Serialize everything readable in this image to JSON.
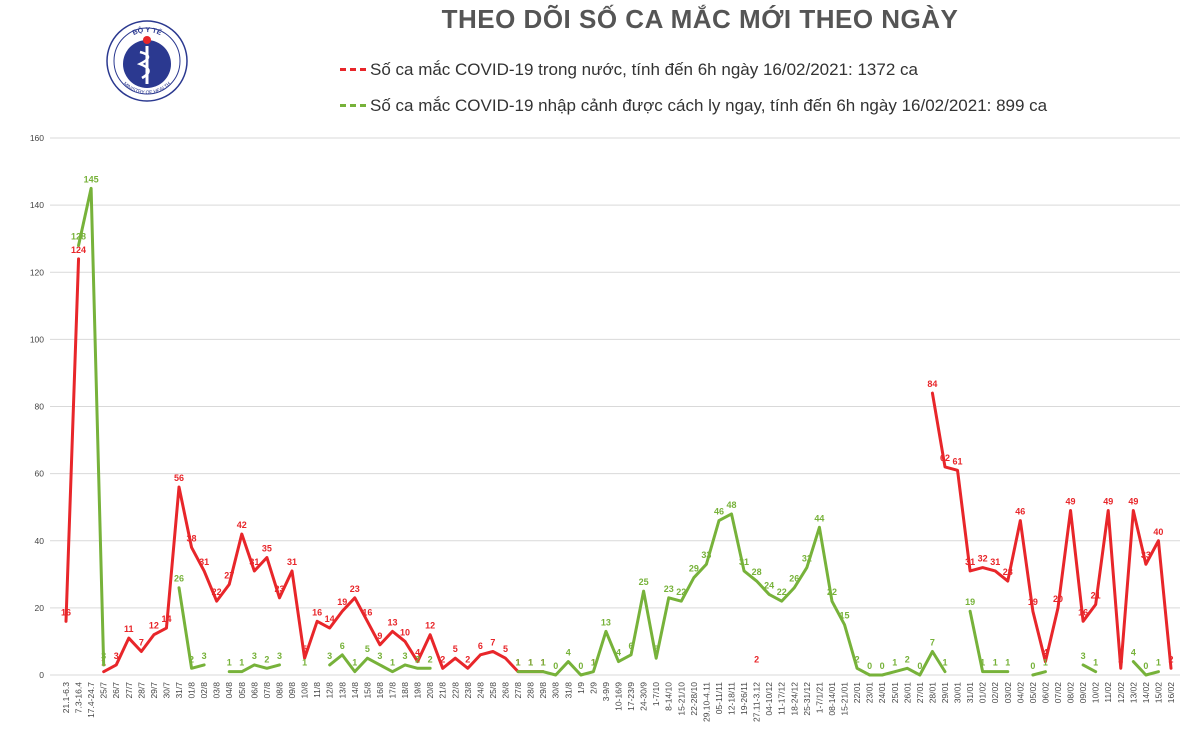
{
  "header": {
    "title": "THEO DÕI SỐ CA MẮC MỚI THEO NGÀY",
    "logo_text_top": "BỘ Y TẾ",
    "logo_text_bottom": "MINISTRY OF HEALTH"
  },
  "legend": {
    "domestic": "Số ca mắc COVID-19 trong nước, tính đến 6h ngày 16/02/2021: 1372 ca",
    "imported": "Số ca mắc COVID-19 nhập cảnh được cách ly ngay, tính đến 6h ngày 16/02/2021: 899 ca"
  },
  "colors": {
    "domestic": "#e8262a",
    "imported": "#77b23a",
    "grid": "#d9d9d9",
    "title": "#555555"
  },
  "chart_data": {
    "type": "line",
    "ylim": [
      0,
      160
    ],
    "yticks": [
      0,
      20,
      40,
      60,
      80,
      100,
      120,
      140,
      160
    ],
    "grid": "horizontal",
    "legend_position": "top",
    "categories": [
      "21.1-6.3",
      "7.3-16.4",
      "17.4-24.7",
      "25/7",
      "26/7",
      "27/7",
      "28/7",
      "29/7",
      "30/7",
      "31/7",
      "01/8",
      "02/8",
      "03/8",
      "04/8",
      "05/8",
      "06/8",
      "07/8",
      "08/8",
      "09/8",
      "10/8",
      "11/8",
      "12/8",
      "13/8",
      "14/8",
      "15/8",
      "16/8",
      "17/8",
      "18/8",
      "19/8",
      "20/8",
      "21/8",
      "22/8",
      "23/8",
      "24/8",
      "25/8",
      "26/8",
      "27/8",
      "28/8",
      "29/8",
      "30/8",
      "31/8",
      "1/9",
      "2/9",
      "3-9/9",
      "10-16/9",
      "17-23/9",
      "24-30/9",
      "1-7/10",
      "8-14/10",
      "15-21/10",
      "22-28/10",
      "29.10-4.11",
      "05-11/11",
      "12-18/11",
      "19-26/11",
      "27.11-3.12",
      "04-10/12",
      "11-17/12",
      "18-24/12",
      "25-31/12",
      "1-7/1/21",
      "08-14/01",
      "15-21/01",
      "22/01",
      "23/01",
      "24/01",
      "25/01",
      "26/01",
      "27/01",
      "28/01",
      "29/01",
      "30/01",
      "31/01",
      "01/02",
      "02/02",
      "03/02",
      "04/02",
      "05/02",
      "06/02",
      "07/02",
      "08/02",
      "09/02",
      "10/02",
      "11/02",
      "12/02",
      "13/02",
      "14/02",
      "15/02",
      "16/02"
    ],
    "series": [
      {
        "name": "Số ca mắc COVID-19 trong nước, tính đến 6h ngày 16/02/2021: 1372 ca",
        "values": [
          16,
          124,
          null,
          1,
          3,
          11,
          7,
          12,
          14,
          56,
          38,
          31,
          22,
          27,
          42,
          31,
          35,
          23,
          31,
          5,
          16,
          14,
          19,
          23,
          16,
          9,
          13,
          10,
          4,
          12,
          2,
          5,
          2,
          6,
          7,
          5,
          1,
          1,
          1,
          null,
          null,
          null,
          1,
          null,
          null,
          null,
          null,
          null,
          null,
          null,
          null,
          null,
          null,
          null,
          null,
          2,
          null,
          null,
          null,
          null,
          null,
          null,
          null,
          null,
          null,
          null,
          null,
          null,
          null,
          84,
          62,
          61,
          31,
          32,
          31,
          28,
          46,
          19,
          4,
          20,
          49,
          16,
          21,
          49,
          2,
          49,
          33,
          40,
          2
        ]
      },
      {
        "name": "Số ca mắc COVID-19 nhập cảnh được cách ly ngay, tính đến 6h ngày 16/02/2021: 899 ca",
        "values": [
          null,
          128,
          145,
          3,
          null,
          null,
          null,
          null,
          null,
          26,
          2,
          3,
          null,
          1,
          1,
          3,
          2,
          3,
          null,
          1,
          null,
          3,
          6,
          1,
          5,
          3,
          1,
          3,
          2,
          2,
          null,
          null,
          null,
          null,
          null,
          null,
          1,
          1,
          1,
          0,
          4,
          0,
          1,
          13,
          4,
          6,
          25,
          5,
          23,
          22,
          29,
          33,
          46,
          48,
          31,
          28,
          24,
          22,
          26,
          32,
          44,
          22,
          15,
          2,
          0,
          0,
          1,
          2,
          0,
          7,
          1,
          null,
          19,
          1,
          1,
          1,
          null,
          0,
          1,
          null,
          null,
          3,
          1,
          null,
          null,
          4,
          0,
          1,
          null
        ]
      }
    ]
  }
}
